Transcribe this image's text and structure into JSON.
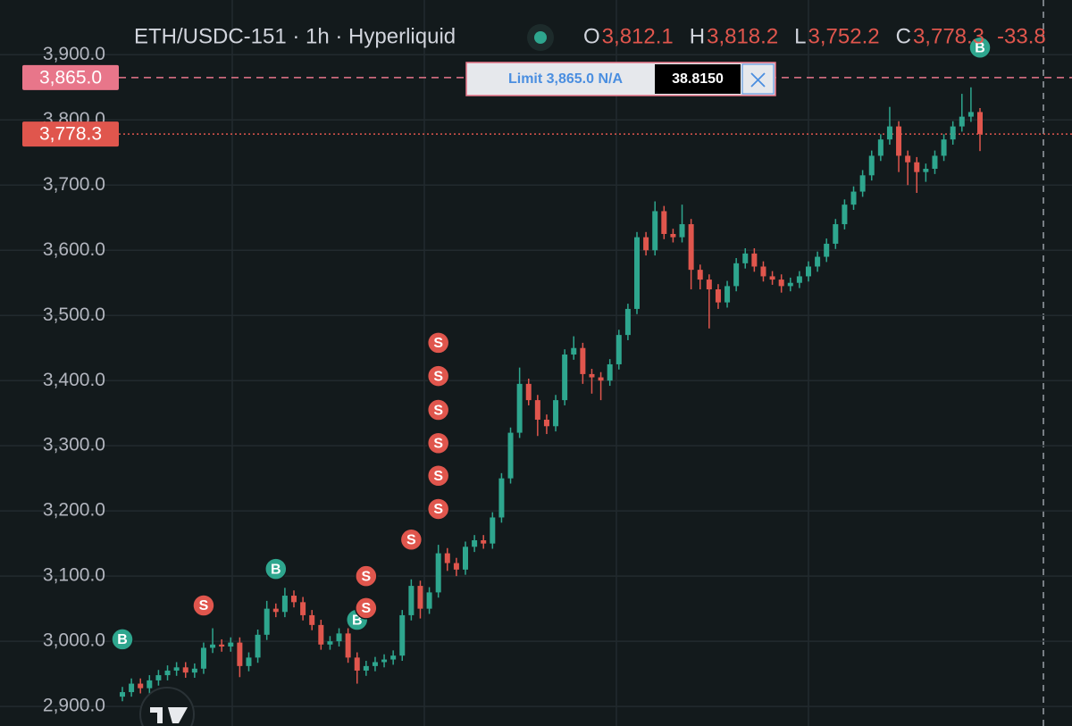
{
  "chart_data": {
    "type": "candlestick",
    "header": {
      "title": "ETH/USDC-151 · 1h · Hyperliquid",
      "fields": [
        {
          "label": "O",
          "value": "3,812.1"
        },
        {
          "label": "H",
          "value": "3,818.2"
        },
        {
          "label": "L",
          "value": "3,752.2"
        },
        {
          "label": "C",
          "value": "3,778.3"
        }
      ],
      "change": "-33.8"
    },
    "up_color": "#2ea68e",
    "down_color": "#e0564d",
    "ylim": [
      2870,
      3984
    ],
    "yticks": [
      {
        "value": 2900,
        "label": "2,900.0"
      },
      {
        "value": 3000,
        "label": "3,000.0"
      },
      {
        "value": 3100,
        "label": "3,100.0"
      },
      {
        "value": 3200,
        "label": "3,200.0"
      },
      {
        "value": 3300,
        "label": "3,300.0"
      },
      {
        "value": 3400,
        "label": "3,400.0"
      },
      {
        "value": 3500,
        "label": "3,500.0"
      },
      {
        "value": 3600,
        "label": "3,600.0"
      },
      {
        "value": 3700,
        "label": "3,700.0"
      },
      {
        "value": 3800,
        "label": "3,800.0"
      },
      {
        "value": 3900,
        "label": "3,900.0"
      }
    ],
    "grid": true,
    "open": [
      2915,
      2922,
      2935,
      2928,
      2940,
      2948,
      2955,
      2960,
      2952,
      2958,
      2990,
      2995,
      2992,
      2998,
      2962,
      2975,
      3010,
      3050,
      3045,
      3070,
      3060,
      3040,
      3025,
      2995,
      3000,
      3012,
      2975,
      2955,
      2962,
      2968,
      2972,
      2978,
      3040,
      3085,
      3050,
      3075,
      3135,
      3120,
      3110,
      3145,
      3155,
      3150,
      3190,
      3250,
      3320,
      3395,
      3370,
      3340,
      3330,
      3370,
      3440,
      3450,
      3410,
      3405,
      3400,
      3425,
      3470,
      3510,
      3620,
      3600,
      3660,
      3625,
      3620,
      3640,
      3570,
      3555,
      3540,
      3520,
      3545,
      3580,
      3595,
      3575,
      3560,
      3555,
      3545,
      3550,
      3560,
      3575,
      3590,
      3610,
      3640,
      3670,
      3690,
      3715,
      3745,
      3770,
      3790,
      3745,
      3735,
      3720,
      3725,
      3745,
      3770,
      3790,
      3805,
      3812.1
    ],
    "high": [
      2930,
      2943,
      2943,
      2948,
      2956,
      2963,
      2968,
      2968,
      2966,
      2998,
      3020,
      3003,
      3006,
      3006,
      2983,
      3018,
      3062,
      3058,
      3082,
      3078,
      3068,
      3048,
      3033,
      3008,
      3020,
      3020,
      2983,
      2970,
      2976,
      2980,
      2986,
      3048,
      3095,
      3093,
      3083,
      3148,
      3143,
      3128,
      3153,
      3163,
      3163,
      3198,
      3258,
      3328,
      3420,
      3403,
      3378,
      3348,
      3378,
      3448,
      3468,
      3458,
      3418,
      3413,
      3433,
      3478,
      3518,
      3628,
      3628,
      3675,
      3668,
      3633,
      3670,
      3648,
      3578,
      3563,
      3548,
      3553,
      3588,
      3603,
      3603,
      3583,
      3568,
      3563,
      3558,
      3568,
      3583,
      3598,
      3618,
      3648,
      3678,
      3698,
      3723,
      3753,
      3778,
      3820,
      3798,
      3753,
      3743,
      3733,
      3753,
      3778,
      3798,
      3840,
      3850,
      3818.2
    ],
    "low": [
      2908,
      2915,
      2920,
      2920,
      2932,
      2940,
      2947,
      2944,
      2944,
      2950,
      2982,
      2984,
      2984,
      2945,
      2954,
      2967,
      3002,
      3037,
      3037,
      3052,
      3032,
      3017,
      2987,
      2987,
      2992,
      2967,
      2935,
      2947,
      2954,
      2960,
      2964,
      2970,
      3032,
      3035,
      3042,
      3067,
      3108,
      3100,
      3102,
      3137,
      3142,
      3142,
      3182,
      3242,
      3312,
      3362,
      3315,
      3318,
      3322,
      3362,
      3432,
      3395,
      3380,
      3370,
      3392,
      3417,
      3462,
      3502,
      3592,
      3592,
      3617,
      3612,
      3612,
      3540,
      3540,
      3480,
      3510,
      3512,
      3537,
      3572,
      3567,
      3552,
      3547,
      3535,
      3537,
      3542,
      3552,
      3567,
      3582,
      3602,
      3632,
      3662,
      3682,
      3707,
      3737,
      3762,
      3720,
      3700,
      3688,
      3705,
      3717,
      3737,
      3762,
      3782,
      3797,
      3752.2
    ],
    "close": [
      2922,
      2935,
      2928,
      2940,
      2948,
      2955,
      2960,
      2952,
      2958,
      2990,
      2995,
      2992,
      2998,
      2962,
      2975,
      3010,
      3050,
      3045,
      3070,
      3060,
      3040,
      3025,
      2995,
      3000,
      3012,
      2975,
      2955,
      2962,
      2968,
      2972,
      2978,
      3040,
      3085,
      3050,
      3075,
      3135,
      3120,
      3110,
      3145,
      3155,
      3150,
      3190,
      3250,
      3320,
      3395,
      3370,
      3340,
      3330,
      3370,
      3440,
      3450,
      3410,
      3405,
      3400,
      3425,
      3470,
      3510,
      3620,
      3600,
      3660,
      3625,
      3620,
      3640,
      3570,
      3555,
      3540,
      3520,
      3545,
      3580,
      3595,
      3575,
      3560,
      3555,
      3545,
      3550,
      3560,
      3575,
      3590,
      3610,
      3640,
      3670,
      3690,
      3715,
      3745,
      3770,
      3790,
      3745,
      3735,
      3720,
      3725,
      3745,
      3770,
      3790,
      3805,
      3812.1,
      3778.3
    ],
    "price_lines": [
      {
        "value": 3865,
        "label": "3,865.0",
        "color": "#e8768a",
        "style": "dashed"
      },
      {
        "value": 3778.3,
        "label": "3,778.3",
        "color": "#e0564d",
        "style": "dotted"
      }
    ],
    "order": {
      "text": "Limit 3,865.0 N/A",
      "quantity": "38.8150"
    },
    "markers": [
      {
        "label": "B",
        "index": 0,
        "value": 3003
      },
      {
        "label": "S",
        "index": 9,
        "value": 3055
      },
      {
        "label": "B",
        "index": 17,
        "value": 3111
      },
      {
        "label": "B",
        "index": 26,
        "value": 3033
      },
      {
        "label": "S",
        "index": 27,
        "value": 3100
      },
      {
        "label": "S",
        "index": 27,
        "value": 3051
      },
      {
        "label": "S",
        "index": 32,
        "value": 3156
      },
      {
        "label": "S",
        "index": 35,
        "value": 3203
      },
      {
        "label": "S",
        "index": 35,
        "value": 3254
      },
      {
        "label": "S",
        "index": 35,
        "value": 3304
      },
      {
        "label": "S",
        "index": 35,
        "value": 3355
      },
      {
        "label": "S",
        "index": 35,
        "value": 3407
      },
      {
        "label": "S",
        "index": 35,
        "value": 3458
      },
      {
        "label": "B",
        "index": 95,
        "value": 3911
      }
    ]
  }
}
